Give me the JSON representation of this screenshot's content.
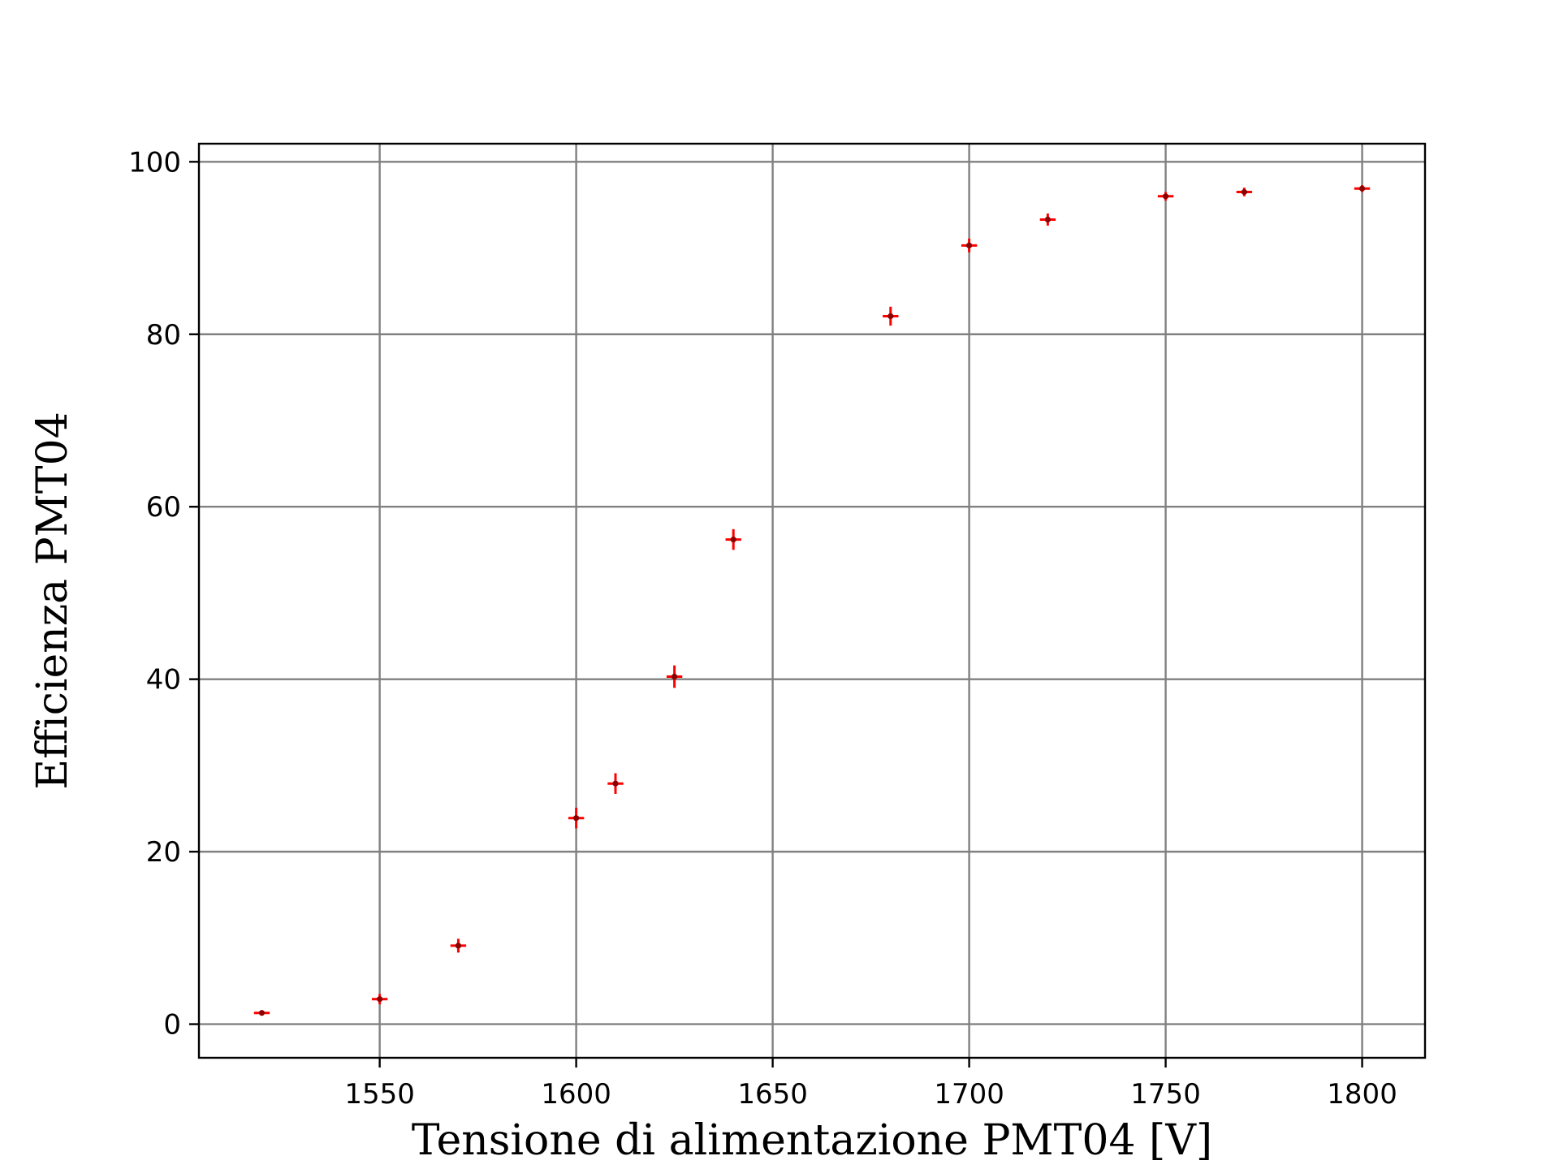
{
  "chart_data": {
    "type": "scatter",
    "title": "",
    "xlabel": "Tensione di alimentazione PMT04 [V]",
    "ylabel": "Efficienza PMT04",
    "xlim": [
      1504,
      1816
    ],
    "ylim": [
      -3.9,
      102.1
    ],
    "x_ticks": [
      1550,
      1600,
      1650,
      1700,
      1750,
      1800
    ],
    "y_ticks": [
      0,
      20,
      40,
      60,
      80,
      100
    ],
    "x_tick_labels": [
      "1550",
      "1600",
      "1650",
      "1700",
      "1750",
      "1800"
    ],
    "y_tick_labels": [
      "0",
      "20",
      "40",
      "60",
      "80",
      "100"
    ],
    "grid": true,
    "legend": "none",
    "colors": {
      "errorbar": "#ff0000",
      "marker": "#8b0000",
      "grid": "#808080",
      "frame": "#000000"
    },
    "series": [
      {
        "x": [
          1520,
          1550,
          1570,
          1600,
          1610,
          1625,
          1640,
          1680,
          1700,
          1720,
          1750,
          1770,
          1800
        ],
        "y": [
          1.3,
          2.9,
          9.1,
          23.9,
          27.9,
          40.3,
          56.2,
          82.1,
          90.3,
          93.3,
          96.0,
          96.5,
          96.9
        ],
        "x_err": [
          2,
          2,
          2,
          2,
          2,
          2,
          2,
          2,
          2,
          2,
          2,
          2,
          2
        ],
        "y_err": [
          0.3,
          0.6,
          0.8,
          1.2,
          1.2,
          1.3,
          1.2,
          1.1,
          0.8,
          0.7,
          0.5,
          0.5,
          0.4
        ]
      }
    ]
  }
}
